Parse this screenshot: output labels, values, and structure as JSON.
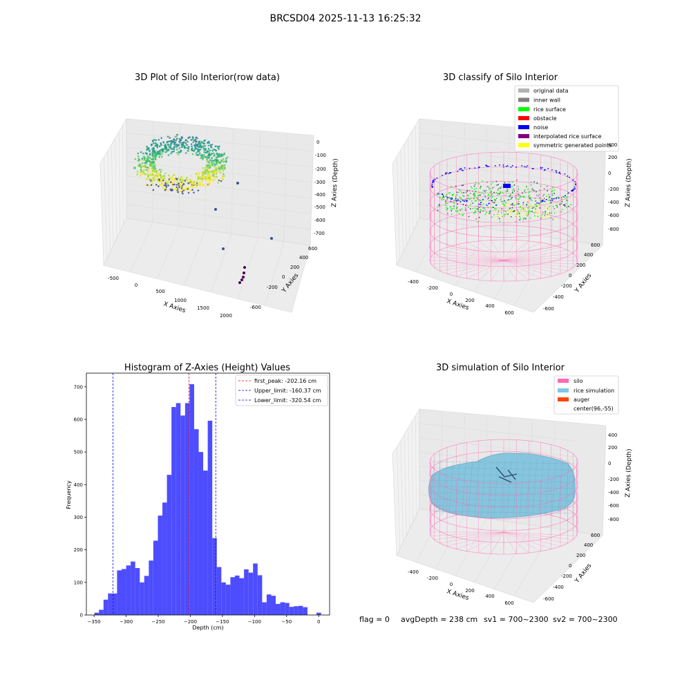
{
  "figure_title": "BRCSD04 2025-11-13 16:25:32",
  "status_line": {
    "flag": "flag = 0",
    "avg_depth": "avgDepth = 238 cm",
    "sv1": "sv1 = 700~2300",
    "sv2": "sv2 = 700~2300"
  },
  "colors": {
    "hist_bar": "#4d4dff",
    "first_peak_line": "#ff0000",
    "limit_lines": "#0000ff",
    "pane_left": "#f2f2f2",
    "pane_right": "#e6e6e6",
    "pane_floor": "#ececec",
    "grid": "#dcdcdc",
    "silo_wire": "#ff69b4",
    "rice_sim": "#7ec8e3"
  },
  "chart_data": [
    {
      "type": "scatter3d",
      "title": "3D Plot of Silo Interior(row data)",
      "xlabel": "X Axies",
      "ylabel": "Y Axies",
      "zlabel": "Z Axies (Depth)",
      "x_ticks": [
        "-500",
        "0",
        "500",
        "1000",
        "1500",
        "2000"
      ],
      "y_ticks": [
        "-600",
        "-400",
        "-200",
        "0",
        "200",
        "400",
        "600"
      ],
      "z_ticks": [
        "0",
        "-100",
        "-200",
        "-300",
        "-400",
        "-500",
        "-600",
        "-700"
      ],
      "grid": true,
      "colormap": "viridis"
    },
    {
      "type": "scatter3d",
      "title": "3D classify of Silo Interior",
      "xlabel": "X Axies",
      "ylabel": "Y Axies",
      "zlabel": "Z Axies (Depth)",
      "x_ticks": [
        "-400",
        "-200",
        "0",
        "200",
        "400",
        "600"
      ],
      "y_ticks": [
        "-600",
        "-400",
        "-200",
        "0",
        "200",
        "400",
        "600"
      ],
      "z_ticks": [
        "400",
        "200",
        "0",
        "-200",
        "-400",
        "-600",
        "-800"
      ],
      "legend_position": "top-right",
      "legend": [
        {
          "label": "original data",
          "color": "#b3b3b3"
        },
        {
          "label": "inner wall",
          "color": "#808080"
        },
        {
          "label": "rice surface",
          "color": "#00ff00"
        },
        {
          "label": "obstacle",
          "color": "#ff0000"
        },
        {
          "label": "noise",
          "color": "#0000ff"
        },
        {
          "label": "interpolated rice surface",
          "color": "#800080"
        },
        {
          "label": "symmetric generated points",
          "color": "#ffff00"
        }
      ]
    },
    {
      "type": "bar",
      "title": "Histogram of Z-Axies (Height) Values",
      "xlabel": "Depth (cm)",
      "ylabel": "Frequency",
      "xlim": [
        -362,
        17
      ],
      "ylim": [
        0,
        742
      ],
      "x_ticks": [
        -350,
        -300,
        -250,
        -200,
        -150,
        -100,
        -50,
        0
      ],
      "y_ticks": [
        0,
        100,
        200,
        300,
        400,
        500,
        600,
        700
      ],
      "bins": {
        "edges": [
          -349.5,
          -342.4,
          -335.3,
          -328.3,
          -321.2,
          -314.2,
          -307.1,
          -300.0,
          -293.0,
          -285.9,
          -278.8,
          -271.8,
          -264.7,
          -257.7,
          -250.6,
          -243.5,
          -236.5,
          -229.4,
          -222.3,
          -215.3,
          -208.2,
          -201.2,
          -194.1,
          -187.0,
          -180.0,
          -172.9,
          -165.8,
          -158.8,
          -151.7,
          -144.7,
          -137.6,
          -130.5,
          -123.5,
          -116.4,
          -109.3,
          -102.3,
          -95.2,
          -88.1,
          -81.1,
          -74.0,
          -67.0,
          -59.9,
          -52.8,
          -45.8,
          -38.7,
          -31.6,
          -24.6,
          -17.5,
          -10.5,
          -3.4,
          3.7
        ],
        "counts": [
          7,
          16,
          47,
          66,
          66,
          137,
          141,
          152,
          164,
          144,
          100,
          120,
          167,
          228,
          305,
          345,
          430,
          638,
          650,
          612,
          650,
          708,
          570,
          500,
          443,
          596,
          236,
          147,
          100,
          93,
          116,
          121,
          113,
          140,
          130,
          158,
          122,
          39,
          63,
          59,
          34,
          39,
          37,
          25,
          27,
          28,
          24,
          0,
          0,
          7
        ]
      },
      "series": [
        {
          "name": "",
          "values": "counts"
        }
      ],
      "vlines": [
        {
          "label": "first_peak: -202.16 cm",
          "x": -202.16,
          "color": "#ff0000"
        },
        {
          "label": "Upper_limit: -160.37 cm",
          "x": -160.37,
          "color": "#0000ff"
        },
        {
          "label": "Lower_limit: -320.54 cm",
          "x": -320.54,
          "color": "#0000ff"
        }
      ],
      "legend_position": "top-right"
    },
    {
      "type": "surface3d",
      "title": "3D simulation of Silo Interior",
      "xlabel": "X Axies",
      "ylabel": "Y Axies",
      "zlabel": "Z Axies (Depth)",
      "x_ticks": [
        "-400",
        "-200",
        "0",
        "200",
        "400",
        "600"
      ],
      "y_ticks": [
        "-600",
        "-400",
        "-200",
        "0",
        "200",
        "400",
        "600"
      ],
      "z_ticks": [
        "400",
        "200",
        "0",
        "-200",
        "-400",
        "-600",
        "-800"
      ],
      "legend_position": "top-right",
      "legend": [
        {
          "label": "silo",
          "color": "#ff69b4"
        },
        {
          "label": "rice simulation",
          "color": "#7ec8e3"
        },
        {
          "label": "auger",
          "color": "#ff4500"
        },
        {
          "label": "center(96,-55)",
          "color": ""
        }
      ]
    }
  ]
}
